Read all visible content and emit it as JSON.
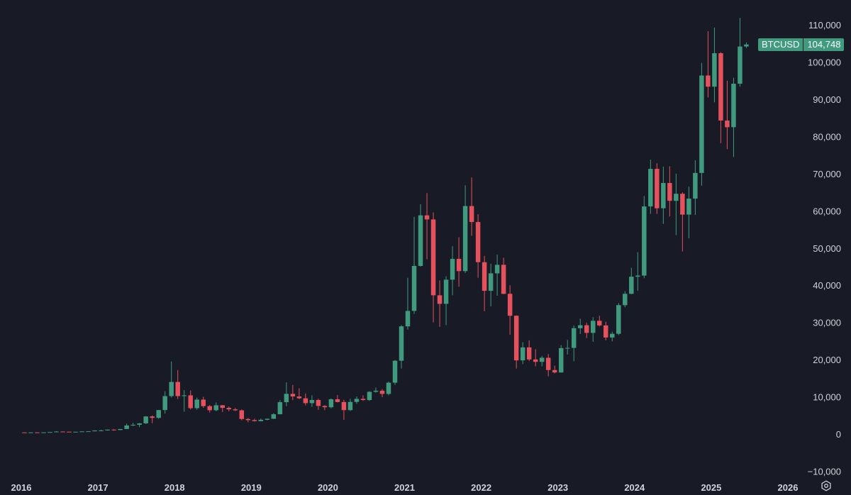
{
  "colors": {
    "background": "#181a25",
    "up": "#3f9a7e",
    "down": "#e5515d",
    "text": "#cfd2da",
    "badge": "#3f9a7e"
  },
  "price_badge": {
    "symbol": "BTCUSD",
    "value": "104,748"
  },
  "chart_data": {
    "type": "candlestick",
    "title": "",
    "series_name": "BTCUSD",
    "interval": "monthly",
    "y_ticks": [
      "110,000",
      "100,000",
      "90,000",
      "80,000",
      "70,000",
      "60,000",
      "50,000",
      "40,000",
      "30,000",
      "20,000",
      "10,000",
      "0",
      "−10,000"
    ],
    "x_ticks": [
      "2016",
      "2017",
      "2018",
      "2019",
      "2020",
      "2021",
      "2022",
      "2023",
      "2024",
      "2025",
      "2026"
    ],
    "ylim": [
      -10000,
      112000
    ],
    "xlim": [
      "2016-01",
      "2026-01"
    ],
    "last_price": 104748,
    "grid": false,
    "candles": [
      [
        "2016-01",
        430,
        440,
        360,
        370
      ],
      [
        "2016-02",
        370,
        445,
        365,
        435
      ],
      [
        "2016-03",
        435,
        440,
        395,
        415
      ],
      [
        "2016-04",
        415,
        465,
        410,
        450
      ],
      [
        "2016-05",
        450,
        550,
        440,
        530
      ],
      [
        "2016-06",
        530,
        780,
        520,
        670
      ],
      [
        "2016-07",
        670,
        700,
        610,
        625
      ],
      [
        "2016-08",
        625,
        620,
        475,
        575
      ],
      [
        "2016-09",
        575,
        620,
        590,
        610
      ],
      [
        "2016-10",
        610,
        720,
        600,
        700
      ],
      [
        "2016-11",
        700,
        750,
        690,
        740
      ],
      [
        "2016-12",
        740,
        980,
        730,
        960
      ],
      [
        "2017-01",
        960,
        1150,
        750,
        970
      ],
      [
        "2017-02",
        970,
        1200,
        920,
        1190
      ],
      [
        "2017-03",
        1190,
        1290,
        890,
        1070
      ],
      [
        "2017-04",
        1070,
        1350,
        1050,
        1350
      ],
      [
        "2017-05",
        1350,
        2800,
        1340,
        2300
      ],
      [
        "2017-06",
        2300,
        3000,
        2150,
        2480
      ],
      [
        "2017-07",
        2480,
        2950,
        1850,
        2870
      ],
      [
        "2017-08",
        2870,
        4800,
        2700,
        4730
      ],
      [
        "2017-09",
        4730,
        5000,
        2900,
        4340
      ],
      [
        "2017-10",
        4340,
        6450,
        4110,
        6450
      ],
      [
        "2017-11",
        6450,
        11500,
        5500,
        10200
      ],
      [
        "2017-12",
        10200,
        19500,
        9800,
        14000
      ],
      [
        "2018-01",
        14000,
        17200,
        9400,
        10200
      ],
      [
        "2018-02",
        10200,
        11800,
        6000,
        10400
      ],
      [
        "2018-03",
        10400,
        11700,
        6600,
        6950
      ],
      [
        "2018-04",
        6950,
        9800,
        6500,
        9250
      ],
      [
        "2018-05",
        9250,
        10000,
        7050,
        7500
      ],
      [
        "2018-06",
        7500,
        7800,
        5800,
        6400
      ],
      [
        "2018-07",
        6400,
        8500,
        6100,
        7730
      ],
      [
        "2018-08",
        7730,
        7800,
        5900,
        7030
      ],
      [
        "2018-09",
        7030,
        7400,
        6100,
        6630
      ],
      [
        "2018-10",
        6630,
        7000,
        6200,
        6370
      ],
      [
        "2018-11",
        6370,
        6600,
        3700,
        4040
      ],
      [
        "2018-12",
        4040,
        4250,
        3150,
        3740
      ],
      [
        "2019-01",
        3740,
        4100,
        3350,
        3460
      ],
      [
        "2019-02",
        3460,
        4200,
        3400,
        3830
      ],
      [
        "2019-03",
        3830,
        4150,
        3700,
        4100
      ],
      [
        "2019-04",
        4100,
        5600,
        4050,
        5320
      ],
      [
        "2019-05",
        5320,
        9100,
        5300,
        8560
      ],
      [
        "2019-06",
        8560,
        13900,
        7500,
        10800
      ],
      [
        "2019-07",
        10800,
        13200,
        9100,
        10100
      ],
      [
        "2019-08",
        10100,
        12300,
        9400,
        9600
      ],
      [
        "2019-09",
        9600,
        10900,
        7700,
        8300
      ],
      [
        "2019-10",
        8300,
        10400,
        7300,
        9150
      ],
      [
        "2019-11",
        9150,
        9500,
        6500,
        7550
      ],
      [
        "2019-12",
        7550,
        7750,
        6400,
        7200
      ],
      [
        "2020-01",
        7200,
        9600,
        6900,
        9350
      ],
      [
        "2020-02",
        9350,
        10500,
        8500,
        8600
      ],
      [
        "2020-03",
        8600,
        9200,
        3800,
        6430
      ],
      [
        "2020-04",
        6430,
        9500,
        6200,
        8630
      ],
      [
        "2020-05",
        8630,
        10100,
        8100,
        9450
      ],
      [
        "2020-06",
        9450,
        10400,
        8900,
        9140
      ],
      [
        "2020-07",
        9140,
        11500,
        8900,
        11350
      ],
      [
        "2020-08",
        11350,
        12500,
        11100,
        11650
      ],
      [
        "2020-09",
        11650,
        12100,
        9900,
        10780
      ],
      [
        "2020-10",
        10780,
        14100,
        10400,
        13800
      ],
      [
        "2020-11",
        13800,
        19900,
        13200,
        19700
      ],
      [
        "2020-12",
        19700,
        29300,
        17600,
        28950
      ],
      [
        "2021-01",
        28950,
        42000,
        28100,
        33100
      ],
      [
        "2021-02",
        33100,
        58400,
        32300,
        45200
      ],
      [
        "2021-03",
        45200,
        61800,
        45000,
        58800
      ],
      [
        "2021-04",
        58800,
        64800,
        47000,
        57700
      ],
      [
        "2021-05",
        57700,
        59600,
        30000,
        37300
      ],
      [
        "2021-06",
        37300,
        41300,
        28800,
        35000
      ],
      [
        "2021-07",
        35000,
        42400,
        29300,
        41500
      ],
      [
        "2021-08",
        41500,
        50500,
        37300,
        47100
      ],
      [
        "2021-09",
        47100,
        52900,
        39600,
        43800
      ],
      [
        "2021-10",
        43800,
        66900,
        43300,
        61300
      ],
      [
        "2021-11",
        61300,
        69000,
        53300,
        57000
      ],
      [
        "2021-12",
        57000,
        59100,
        42000,
        46200
      ],
      [
        "2022-01",
        46200,
        47900,
        33000,
        38500
      ],
      [
        "2022-02",
        38500,
        45800,
        34300,
        43200
      ],
      [
        "2022-03",
        43200,
        48200,
        37200,
        45500
      ],
      [
        "2022-04",
        45500,
        47400,
        37600,
        37700
      ],
      [
        "2022-05",
        37700,
        40000,
        26700,
        31800
      ],
      [
        "2022-06",
        31800,
        31900,
        17600,
        19800
      ],
      [
        "2022-07",
        19800,
        24700,
        18800,
        23300
      ],
      [
        "2022-08",
        23300,
        25200,
        19600,
        20050
      ],
      [
        "2022-09",
        20050,
        22800,
        18200,
        19400
      ],
      [
        "2022-10",
        19400,
        21000,
        18200,
        20500
      ],
      [
        "2022-11",
        20500,
        21500,
        15500,
        17200
      ],
      [
        "2022-12",
        17200,
        18400,
        16300,
        16550
      ],
      [
        "2023-01",
        16550,
        23900,
        16500,
        23100
      ],
      [
        "2023-02",
        23100,
        25300,
        21400,
        23150
      ],
      [
        "2023-03",
        23150,
        29200,
        19600,
        28450
      ],
      [
        "2023-04",
        28450,
        31000,
        26900,
        29250
      ],
      [
        "2023-05",
        29250,
        29900,
        25800,
        27200
      ],
      [
        "2023-06",
        27200,
        31400,
        24800,
        30450
      ],
      [
        "2023-07",
        30450,
        31800,
        28900,
        29200
      ],
      [
        "2023-08",
        29200,
        30200,
        25200,
        25950
      ],
      [
        "2023-09",
        25950,
        27500,
        24900,
        26950
      ],
      [
        "2023-10",
        26950,
        35200,
        26600,
        34650
      ],
      [
        "2023-11",
        34650,
        38400,
        34100,
        37700
      ],
      [
        "2023-12",
        37700,
        44700,
        37600,
        42300
      ],
      [
        "2024-01",
        42300,
        48900,
        38500,
        42600
      ],
      [
        "2024-02",
        42600,
        64000,
        41900,
        61200
      ],
      [
        "2024-03",
        61200,
        73800,
        59200,
        71300
      ],
      [
        "2024-04",
        71300,
        72800,
        59200,
        60700
      ],
      [
        "2024-05",
        60700,
        71900,
        56500,
        67500
      ],
      [
        "2024-06",
        67500,
        72000,
        58500,
        62700
      ],
      [
        "2024-07",
        62700,
        70000,
        53500,
        64600
      ],
      [
        "2024-08",
        64600,
        65000,
        49100,
        59000
      ],
      [
        "2024-09",
        59000,
        66500,
        52600,
        63300
      ],
      [
        "2024-10",
        63300,
        73600,
        58900,
        70200
      ],
      [
        "2024-11",
        70200,
        99800,
        66800,
        96400
      ],
      [
        "2024-12",
        96400,
        108300,
        90500,
        93400
      ],
      [
        "2025-01",
        93400,
        109300,
        89200,
        102400
      ],
      [
        "2025-02",
        102400,
        102700,
        78200,
        84300
      ],
      [
        "2025-03",
        84300,
        95000,
        76600,
        82500
      ],
      [
        "2025-04",
        82500,
        95800,
        74500,
        94200
      ],
      [
        "2025-05",
        94200,
        111900,
        93400,
        104200
      ],
      [
        "2025-06",
        104200,
        105300,
        103800,
        104748
      ]
    ]
  }
}
